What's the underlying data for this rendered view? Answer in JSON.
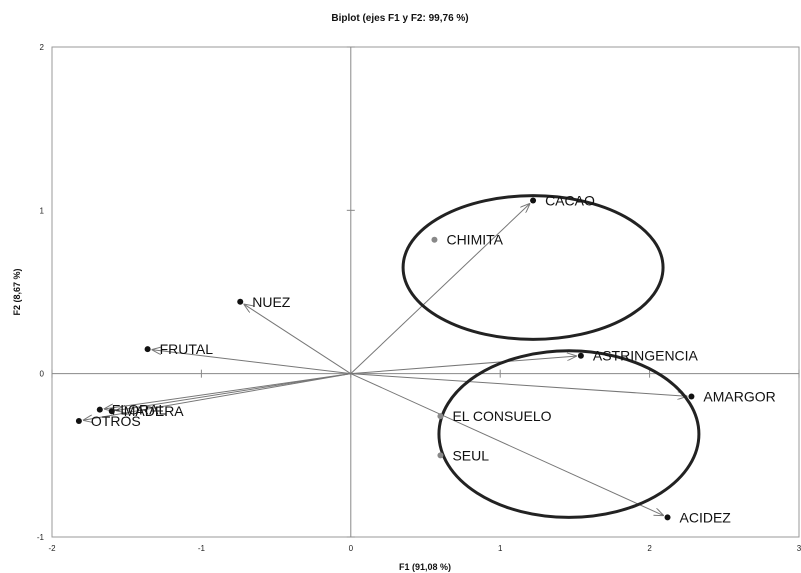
{
  "chart_data": {
    "type": "scatter",
    "title": "Biplot (ejes F1 y F2: 99,76 %)",
    "xlabel": "F1 (91,08 %)",
    "ylabel": "F2 (8,67 %)",
    "xlim": [
      -2,
      3
    ],
    "ylim": [
      -1,
      2
    ],
    "x_ticks": [
      "-2",
      "-1",
      "0",
      "1",
      "2",
      "3"
    ],
    "y_ticks": [
      "-1",
      "0",
      "1",
      "2"
    ],
    "x_tick_values": [
      -2,
      -1,
      0,
      1,
      2,
      3
    ],
    "y_tick_values": [
      -1,
      0,
      1,
      2
    ],
    "variables": [
      {
        "name": "CACAO",
        "x": 1.22,
        "y": 1.06
      },
      {
        "name": "ASTRINGENCIA",
        "x": 1.54,
        "y": 0.11
      },
      {
        "name": "AMARGOR",
        "x": 2.28,
        "y": -0.14
      },
      {
        "name": "ACIDEZ",
        "x": 2.12,
        "y": -0.88
      },
      {
        "name": "NUEZ",
        "x": -0.74,
        "y": 0.44
      },
      {
        "name": "FRUTAL",
        "x": -1.36,
        "y": 0.15
      },
      {
        "name": "FLORAL",
        "x": -1.68,
        "y": -0.22
      },
      {
        "name": "MADERA",
        "x": -1.6,
        "y": -0.23
      },
      {
        "name": "OTROS",
        "x": -1.82,
        "y": -0.29
      }
    ],
    "observations": [
      {
        "name": "CHIMITA",
        "x": 0.56,
        "y": 0.82
      },
      {
        "name": "EL CONSUELO",
        "x": 0.6,
        "y": -0.26
      },
      {
        "name": "SEUL",
        "x": 0.6,
        "y": -0.5
      }
    ],
    "ellipses": [
      {
        "cx": 1.22,
        "cy": 0.65,
        "rx": 0.87,
        "ry": 0.44
      },
      {
        "cx": 1.46,
        "cy": -0.37,
        "rx": 0.87,
        "ry": 0.51
      }
    ],
    "colors": {
      "vector": "#777777",
      "point": "#111111",
      "observation": "#888888",
      "ellipse": "#222222"
    }
  }
}
